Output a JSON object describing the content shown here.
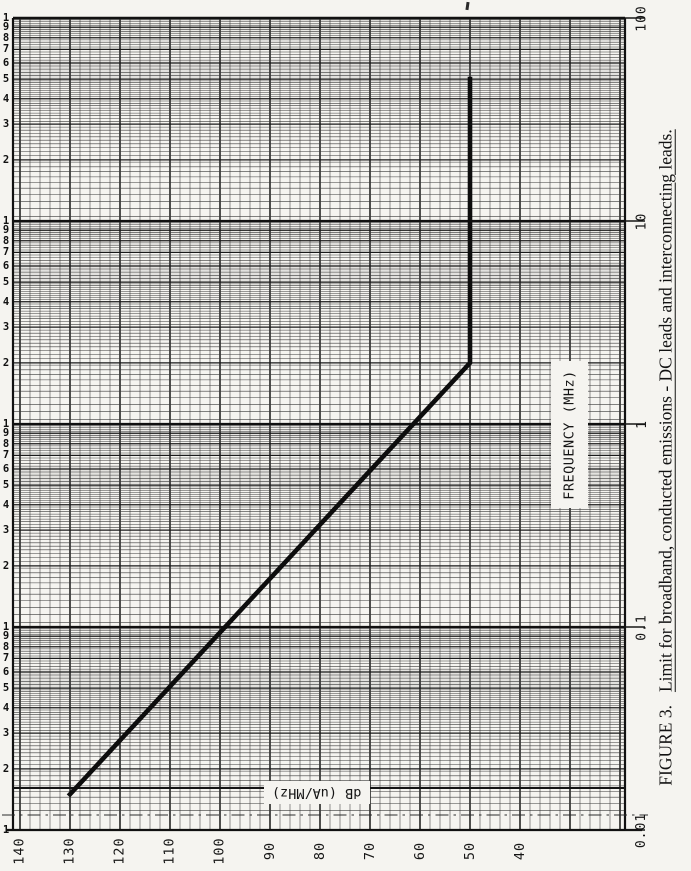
{
  "figure": {
    "caption_prefix": "FIGURE 3.",
    "caption_title": "Limit for broadband, conducted emissions - DC leads and interconnecting leads."
  },
  "axes": {
    "x_label": "FREQUENCY (MHz)",
    "y_label": "dB (uA/MHz)",
    "freq_decade_labels": [
      "100",
      "10",
      "1",
      "0.1",
      "0.01"
    ],
    "freq_subdecade_digits": [
      "1",
      "9",
      "8",
      "7",
      "6",
      "5",
      "4",
      "3",
      "2"
    ],
    "db_labels": [
      "140",
      "130",
      "120",
      "110",
      "100",
      "90",
      "80",
      "70",
      "60",
      "50",
      "40"
    ]
  },
  "colors": {
    "paper": "#f5f4f0",
    "ink": "#161616",
    "minor_grid": "#3a3a3a",
    "smudge": "rgba(0,0,0,0.075)"
  },
  "chart_data": {
    "type": "line",
    "title": "FIGURE 3. Limit for broadband, conducted emissions - DC leads and interconnecting leads.",
    "xlabel": "FREQUENCY (MHz)",
    "ylabel": "dB (uA/MHz)",
    "x_scale": "log",
    "xlim": [
      0.01,
      100
    ],
    "ylim": [
      20,
      140
    ],
    "y_tick_step": 10,
    "y_minor_step": 2,
    "x_tick_labels_shown": [
      100,
      10,
      1,
      0.1,
      0.01
    ],
    "y_tick_labels_shown": [
      140,
      130,
      120,
      110,
      100,
      90,
      80,
      70,
      60,
      50,
      40
    ],
    "grid": "4-cycle semilog graph paper, dense subdivisions",
    "orientation": "figure printed rotated 90deg CCW: frequency axis runs bottom-to-top, dB axis runs left(140)-to-right(40)",
    "legend_position": "none",
    "series": [
      {
        "name": "Broadband conducted emission limit",
        "points_freq_mhz_db": [
          [
            0.015,
            130
          ],
          [
            2,
            50
          ],
          [
            50,
            50
          ]
        ]
      }
    ]
  }
}
